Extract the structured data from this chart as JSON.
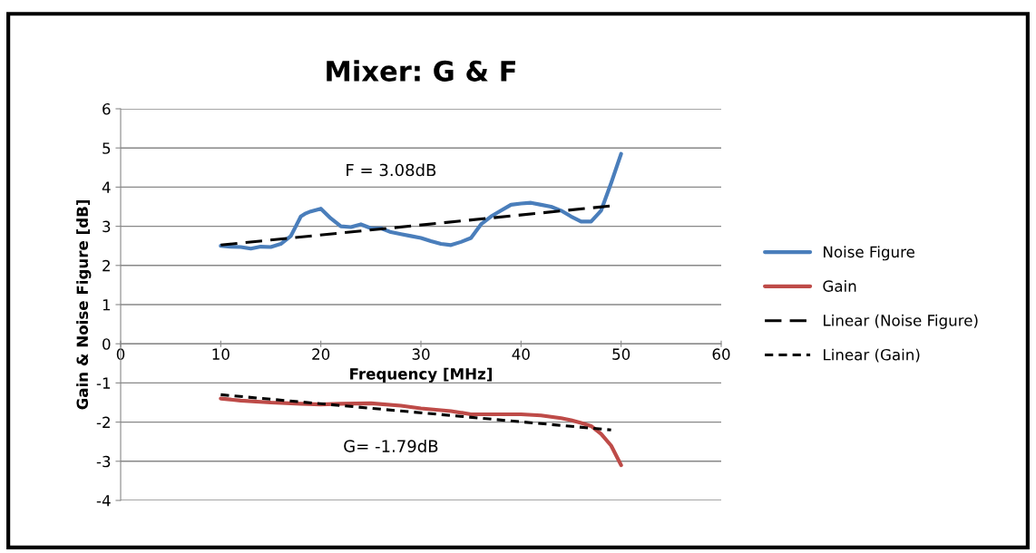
{
  "chart_data": {
    "type": "line",
    "title": "Mixer: G & F",
    "xlabel": "Frequency [MHz]",
    "ylabel": "Gain & Noise Figure [dB]",
    "xlim": [
      0,
      60
    ],
    "xticks": [
      0,
      10,
      20,
      30,
      40,
      50,
      60
    ],
    "ylim": [
      -4,
      6
    ],
    "yticks": [
      -4,
      -3,
      -2,
      -1,
      0,
      1,
      2,
      3,
      4,
      5,
      6
    ],
    "grid": "y",
    "legend": "right",
    "annotations": [
      "F = 3.08dB",
      "G= -1.79dB"
    ],
    "series": [
      {
        "name": "Noise Figure",
        "color": "#4a7ebb",
        "x": [
          10,
          11,
          12,
          13,
          14,
          15,
          16,
          17,
          17.5,
          18,
          18.5,
          19,
          20,
          21,
          22,
          23,
          24,
          25,
          26,
          27,
          28,
          29,
          30,
          31,
          32,
          33,
          34,
          35,
          36,
          37,
          38,
          39,
          40,
          41,
          42,
          43,
          44,
          45,
          46,
          47,
          48,
          49,
          50
        ],
        "values": [
          2.5,
          2.48,
          2.47,
          2.43,
          2.48,
          2.47,
          2.55,
          2.75,
          3.0,
          3.25,
          3.33,
          3.38,
          3.45,
          3.2,
          3.0,
          2.98,
          3.05,
          2.95,
          2.95,
          2.85,
          2.8,
          2.75,
          2.7,
          2.62,
          2.55,
          2.52,
          2.6,
          2.7,
          3.05,
          3.25,
          3.4,
          3.55,
          3.58,
          3.6,
          3.55,
          3.5,
          3.4,
          3.25,
          3.12,
          3.12,
          3.4,
          4.1,
          4.85
        ]
      },
      {
        "name": "Gain",
        "color": "#be4b48",
        "x": [
          10,
          12,
          15,
          18,
          20,
          22,
          25,
          28,
          30,
          33,
          35,
          38,
          40,
          42,
          44,
          45,
          46,
          47,
          48,
          49,
          50
        ],
        "values": [
          -1.4,
          -1.45,
          -1.5,
          -1.53,
          -1.55,
          -1.53,
          -1.52,
          -1.58,
          -1.65,
          -1.72,
          -1.8,
          -1.8,
          -1.8,
          -1.83,
          -1.9,
          -1.95,
          -2.02,
          -2.1,
          -2.3,
          -2.6,
          -3.1
        ]
      },
      {
        "name": "Linear (Noise Figure)",
        "color": "#000000",
        "line_style": "dashed",
        "x": [
          10,
          49
        ],
        "values": [
          2.52,
          3.52
        ]
      },
      {
        "name": "Linear (Gain)",
        "color": "#000000",
        "line_style": "dotted",
        "x": [
          10,
          49
        ],
        "values": [
          -1.3,
          -2.2
        ]
      }
    ]
  }
}
